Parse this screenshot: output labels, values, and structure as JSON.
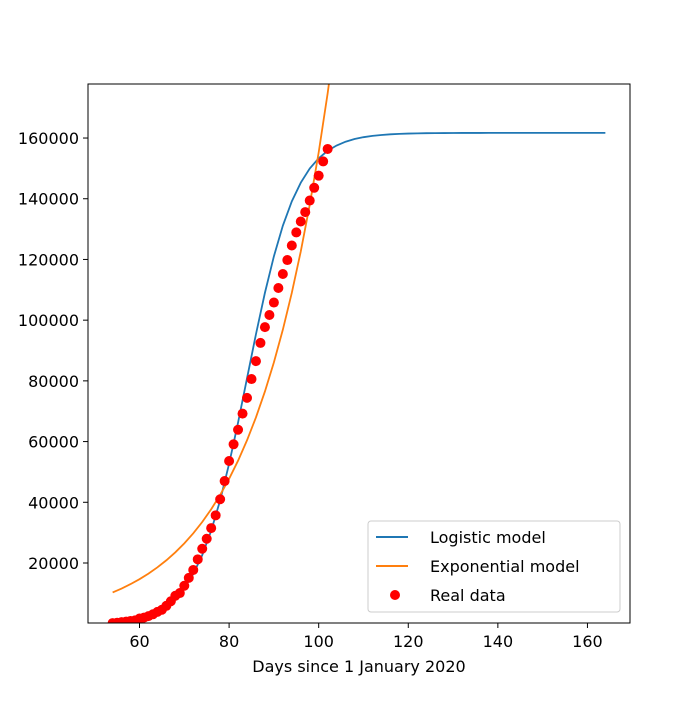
{
  "chart_data": {
    "type": "line",
    "xlabel": "Days since 1 January 2020",
    "xlim": [
      48.5,
      169.5
    ],
    "xticks": [
      60,
      80,
      100,
      120,
      140,
      160
    ],
    "ylim": [
      230,
      177800
    ],
    "yticks": [
      20000,
      40000,
      60000,
      80000,
      100000,
      120000,
      140000,
      160000
    ],
    "legend": "lower right",
    "series": [
      {
        "name": "Logistic model",
        "type": "line",
        "color": "#1f77b4",
        "x": [
          54,
          56,
          58,
          60,
          62,
          64,
          66,
          68,
          70,
          72,
          74,
          76,
          78,
          80,
          82,
          84,
          86,
          88,
          90,
          92,
          94,
          96,
          98,
          100,
          102,
          104,
          106,
          108,
          110,
          112,
          114,
          116,
          118,
          120,
          122,
          124,
          126,
          128,
          130,
          132,
          134,
          136,
          138,
          140,
          142,
          144,
          146,
          148,
          150,
          152,
          154,
          156,
          158,
          160,
          162,
          164
        ],
        "values": [
          689,
          990,
          1420,
          2030,
          2910,
          4160,
          5900,
          8360,
          11760,
          16400,
          22580,
          30620,
          40640,
          52670,
          66270,
          80850,
          95400,
          109030,
          121030,
          131140,
          139150,
          145290,
          149950,
          153340,
          155800,
          157540,
          158790,
          159670,
          160280,
          160710,
          161010,
          161220,
          161370,
          161470,
          161540,
          161590,
          161620,
          161640,
          161660,
          161670,
          161680,
          161685,
          161690,
          161692,
          161694,
          161695,
          161696,
          161697,
          161698,
          161698,
          161699,
          161699,
          161699,
          161700,
          161700,
          161700
        ]
      },
      {
        "name": "Exponential model",
        "type": "line",
        "color": "#ff7f0e",
        "x": [
          54,
          56,
          58,
          60,
          62,
          64,
          66,
          68,
          70,
          72,
          74,
          76,
          78,
          80,
          82,
          84,
          86,
          88,
          90,
          92,
          94,
          96,
          98,
          100,
          102,
          104
        ],
        "values": [
          10300,
          11590,
          13040,
          14670,
          16510,
          18580,
          20900,
          23520,
          26460,
          29780,
          33500,
          37700,
          42420,
          47730,
          53700,
          60430,
          68000,
          76510,
          86090,
          96870,
          109000,
          122640,
          138000,
          155280,
          174720,
          196600
        ]
      },
      {
        "name": "Real data",
        "type": "scatter",
        "color": "#ff0000",
        "x": [
          54,
          55,
          56,
          57,
          58,
          59,
          60,
          61,
          62,
          63,
          64,
          65,
          66,
          67,
          68,
          69,
          70,
          71,
          72,
          73,
          74,
          75,
          76,
          77,
          78,
          79,
          80,
          81,
          82,
          83,
          84,
          85,
          86,
          87,
          88,
          89,
          90,
          91,
          92,
          93,
          94,
          95,
          96,
          97,
          98,
          99,
          100,
          101,
          102
        ],
        "values": [
          200,
          300,
          500,
          700,
          900,
          1100,
          1700,
          2000,
          2500,
          3100,
          3900,
          4600,
          5900,
          7400,
          9200,
          10100,
          12500,
          15100,
          17700,
          21200,
          24700,
          27980,
          31500,
          35700,
          41000,
          47000,
          53600,
          59100,
          63900,
          69200,
          74400,
          80600,
          86500,
          92500,
          97700,
          101700,
          105800,
          110600,
          115200,
          119800,
          124600,
          128900,
          132500,
          135600,
          139400,
          143600,
          147600,
          152300,
          156400
        ]
      }
    ]
  }
}
